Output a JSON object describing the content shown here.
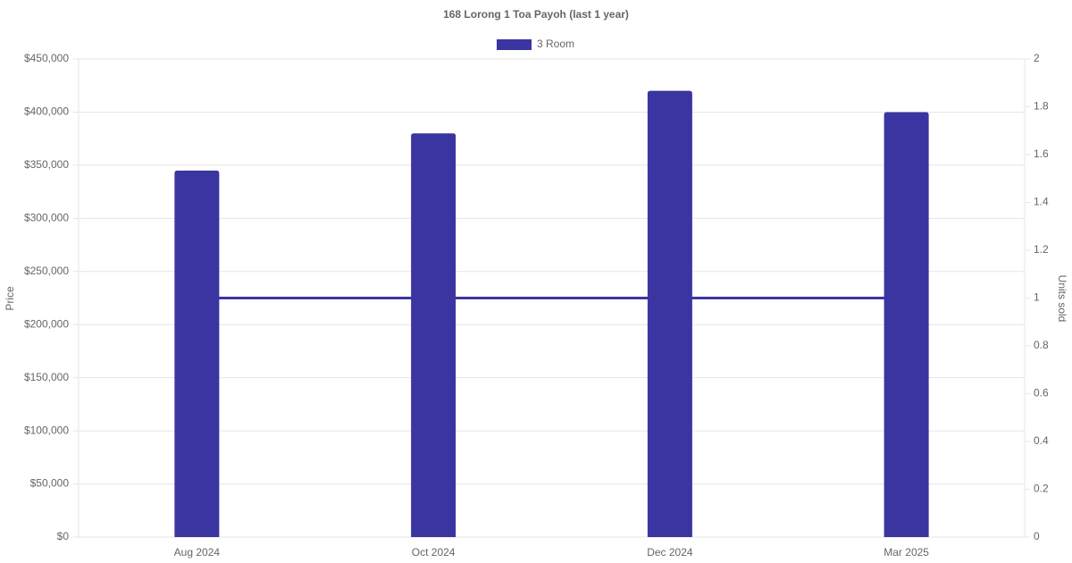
{
  "chart_data": {
    "type": "bar",
    "title": "168 Lorong 1 Toa Payoh (last 1 year)",
    "categories": [
      "Aug 2024",
      "Oct 2024",
      "Dec 2024",
      "Mar 2025"
    ],
    "series": [
      {
        "name": "3 Room",
        "color": "#3a35a0",
        "values": [
          345000,
          380000,
          420000,
          400000
        ]
      },
      {
        "type": "line",
        "axis": "y2",
        "color": "#3a35a0",
        "values": [
          1,
          1,
          1,
          1
        ]
      }
    ],
    "y_label": "Price",
    "y2_label": "Units sold",
    "ylim": [
      0,
      450000
    ],
    "yticks": [
      {
        "value": 0,
        "label": "$0"
      },
      {
        "value": 50000,
        "label": "$50,000"
      },
      {
        "value": 100000,
        "label": "$100,000"
      },
      {
        "value": 150000,
        "label": "$150,000"
      },
      {
        "value": 200000,
        "label": "$200,000"
      },
      {
        "value": 250000,
        "label": "$250,000"
      },
      {
        "value": 300000,
        "label": "$300,000"
      },
      {
        "value": 350000,
        "label": "$350,000"
      },
      {
        "value": 400000,
        "label": "$400,000"
      },
      {
        "value": 450000,
        "label": "$450,000"
      }
    ],
    "y2lim": [
      0,
      2
    ],
    "y2ticks": [
      0,
      0.2,
      0.4,
      0.6,
      0.8,
      1,
      1.2,
      1.4,
      1.6,
      1.8,
      2
    ],
    "grid": true,
    "legend": "top"
  }
}
